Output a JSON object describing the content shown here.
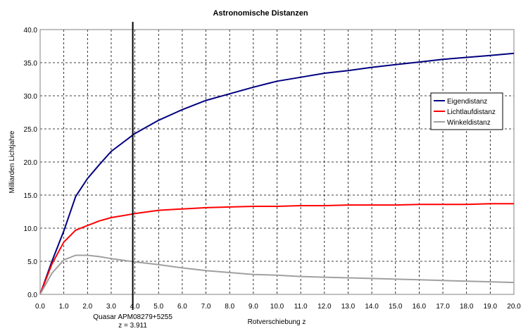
{
  "chart_data": {
    "type": "line",
    "title": "Astronomische Distanzen",
    "xlabel": "Rotverschiebung z",
    "ylabel": "Milliarden Lichtjahre",
    "xlim": [
      0,
      20
    ],
    "ylim": [
      0,
      40
    ],
    "grid": true,
    "legend_position": "right",
    "x_ticks": [
      "0.0",
      "1.0",
      "2.0",
      "3.0",
      "4.0",
      "5.0",
      "6.0",
      "7.0",
      "8.0",
      "9.0",
      "10.0",
      "11.0",
      "12.0",
      "13.0",
      "14.0",
      "15.0",
      "16.0",
      "17.0",
      "18.0",
      "19.0",
      "20.0"
    ],
    "y_ticks": [
      "0.0",
      "5.0",
      "10.0",
      "15.0",
      "20.0",
      "25.0",
      "30.0",
      "35.0",
      "40.0"
    ],
    "series": [
      {
        "name": "Eigendistanz",
        "color": "#000080",
        "x": [
          0,
          0.5,
          1.0,
          1.5,
          2.0,
          2.5,
          3.0,
          4.0,
          5.0,
          6.0,
          7.0,
          8.0,
          9.0,
          10.0,
          11.0,
          12.0,
          13.0,
          14.0,
          15.0,
          16.0,
          17.0,
          18.0,
          19.0,
          20.0
        ],
        "y": [
          0,
          5.0,
          9.6,
          14.8,
          17.5,
          19.6,
          21.6,
          24.3,
          26.3,
          27.9,
          29.3,
          30.3,
          31.3,
          32.2,
          32.8,
          33.4,
          33.8,
          34.3,
          34.7,
          35.1,
          35.5,
          35.8,
          36.1,
          36.4
        ]
      },
      {
        "name": "Lichtlaufdistanz",
        "color": "#ff0000",
        "x": [
          0,
          0.5,
          1.0,
          1.5,
          2.0,
          2.5,
          3.0,
          4.0,
          5.0,
          6.0,
          7.0,
          8.0,
          9.0,
          10.0,
          11.0,
          12.0,
          13.0,
          14.0,
          15.0,
          16.0,
          17.0,
          18.0,
          19.0,
          20.0
        ],
        "y": [
          0,
          4.6,
          7.9,
          9.7,
          10.4,
          11.1,
          11.6,
          12.2,
          12.7,
          12.9,
          13.1,
          13.2,
          13.3,
          13.3,
          13.4,
          13.4,
          13.5,
          13.5,
          13.5,
          13.6,
          13.6,
          13.6,
          13.7,
          13.7
        ]
      },
      {
        "name": "Winkeldistanz",
        "color": "#a0a0a0",
        "x": [
          0,
          0.5,
          1.0,
          1.5,
          2.0,
          2.5,
          3.0,
          4.0,
          5.0,
          6.0,
          7.0,
          8.0,
          9.0,
          10.0,
          11.0,
          12.0,
          13.0,
          14.0,
          15.0,
          16.0,
          17.0,
          18.0,
          19.0,
          20.0
        ],
        "y": [
          0,
          3.2,
          5.2,
          5.9,
          5.9,
          5.7,
          5.4,
          4.9,
          4.5,
          4.0,
          3.6,
          3.3,
          3.0,
          2.9,
          2.7,
          2.6,
          2.5,
          2.4,
          2.3,
          2.2,
          2.1,
          2.0,
          1.9,
          1.8
        ]
      }
    ],
    "annotation": {
      "x": 3.911,
      "label_line1": "Quasar APM08279+5255",
      "label_line2": "z = 3.911"
    }
  }
}
